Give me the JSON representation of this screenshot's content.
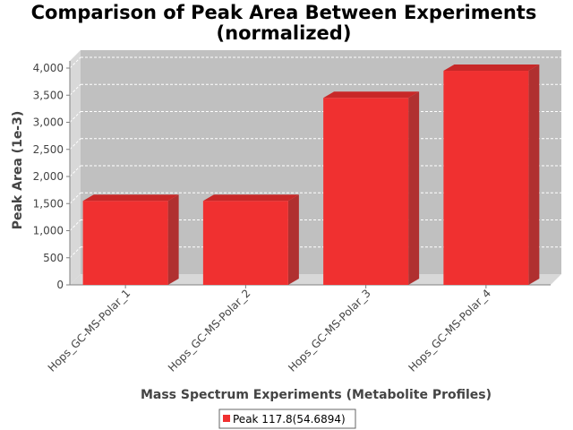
{
  "chart_data": {
    "type": "bar",
    "title_line1": "Comparison of Peak Area Between Experiments",
    "title_line2": "(normalized)",
    "xlabel": "Mass Spectrum Experiments (Metabolite Profiles)",
    "ylabel": "Peak Area (1e-3)",
    "categories": [
      "Hops_GC-MS-Polar_1",
      "Hops_GC-MS-Polar_2",
      "Hops_GC-MS-Polar_3",
      "Hops_GC-MS-Polar_4"
    ],
    "series": [
      {
        "name": "Peak 117.8(54.6894)",
        "values": [
          1550,
          1550,
          3450,
          3950
        ]
      }
    ],
    "ylim": [
      0,
      4000
    ],
    "yticks": [
      0,
      500,
      1000,
      1500,
      2000,
      2500,
      3000,
      3500,
      4000
    ],
    "ytick_labels": [
      "0",
      "500",
      "1,000",
      "1,500",
      "2,000",
      "2,500",
      "3,000",
      "3,500",
      "4,000"
    ],
    "grid": true,
    "legend_position": "bottom",
    "colors": {
      "bar": "#f03030",
      "bar_side": "#b03030",
      "bar_top": "#c82828",
      "plot_bg": "#c0c0c0",
      "wall": "#d8d8d8",
      "grid": "#ffffff"
    }
  }
}
